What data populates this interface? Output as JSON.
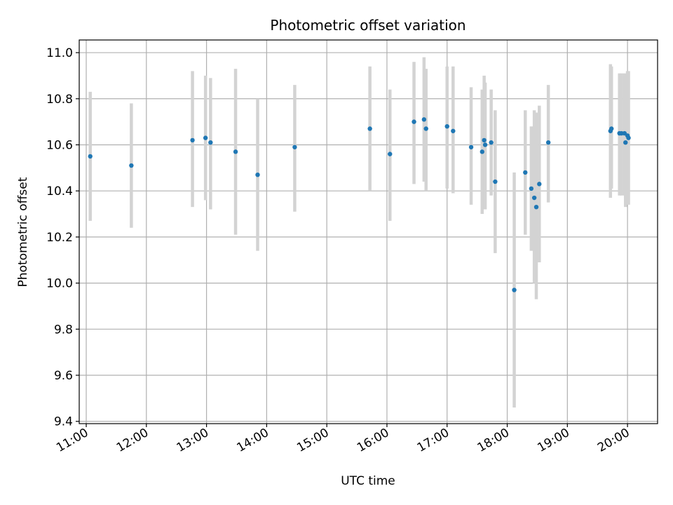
{
  "chart_data": {
    "type": "scatter",
    "title": "Photometric offset variation",
    "xlabel": "UTC time",
    "ylabel": "Photometric offset",
    "grid": true,
    "xlim": [
      "10:53",
      "20:30"
    ],
    "ylim": [
      9.39,
      11.055
    ],
    "xticks": [
      "11:00",
      "12:00",
      "13:00",
      "14:00",
      "15:00",
      "16:00",
      "17:00",
      "18:00",
      "19:00",
      "20:00"
    ],
    "yticks": [
      "9.4",
      "9.6",
      "9.8",
      "10.0",
      "10.2",
      "10.4",
      "10.6",
      "10.8",
      "11.0"
    ],
    "colors": {
      "point": "#1f77b4",
      "errorbar": "#d3d3d3",
      "grid": "#b0b0b0"
    },
    "points": [
      {
        "t": "11:04",
        "y": 10.55,
        "ylo": 10.27,
        "yhi": 10.83
      },
      {
        "t": "11:45",
        "y": 10.51,
        "ylo": 10.24,
        "yhi": 10.78
      },
      {
        "t": "12:46",
        "y": 10.62,
        "ylo": 10.33,
        "yhi": 10.92
      },
      {
        "t": "12:59",
        "y": 10.63,
        "ylo": 10.36,
        "yhi": 10.9
      },
      {
        "t": "13:04",
        "y": 10.61,
        "ylo": 10.32,
        "yhi": 10.89
      },
      {
        "t": "13:29",
        "y": 10.57,
        "ylo": 10.21,
        "yhi": 10.93
      },
      {
        "t": "13:51",
        "y": 10.47,
        "ylo": 10.14,
        "yhi": 10.8
      },
      {
        "t": "14:28",
        "y": 10.59,
        "ylo": 10.31,
        "yhi": 10.86
      },
      {
        "t": "15:43",
        "y": 10.67,
        "ylo": 10.4,
        "yhi": 10.94
      },
      {
        "t": "16:03",
        "y": 10.56,
        "ylo": 10.27,
        "yhi": 10.84
      },
      {
        "t": "16:27",
        "y": 10.7,
        "ylo": 10.43,
        "yhi": 10.96
      },
      {
        "t": "16:37",
        "y": 10.71,
        "ylo": 10.44,
        "yhi": 10.98
      },
      {
        "t": "16:39",
        "y": 10.67,
        "ylo": 10.4,
        "yhi": 10.93
      },
      {
        "t": "17:00",
        "y": 10.68,
        "ylo": 10.41,
        "yhi": 10.94
      },
      {
        "t": "17:06",
        "y": 10.66,
        "ylo": 10.39,
        "yhi": 10.94
      },
      {
        "t": "17:24",
        "y": 10.59,
        "ylo": 10.34,
        "yhi": 10.85
      },
      {
        "t": "17:35",
        "y": 10.57,
        "ylo": 10.3,
        "yhi": 10.84
      },
      {
        "t": "17:37",
        "y": 10.62,
        "ylo": 10.33,
        "yhi": 10.9
      },
      {
        "t": "17:38",
        "y": 10.6,
        "ylo": 10.32,
        "yhi": 10.87
      },
      {
        "t": "17:44",
        "y": 10.61,
        "ylo": 10.38,
        "yhi": 10.84
      },
      {
        "t": "17:48",
        "y": 10.44,
        "ylo": 10.13,
        "yhi": 10.75
      },
      {
        "t": "18:07",
        "y": 9.97,
        "ylo": 9.46,
        "yhi": 10.48
      },
      {
        "t": "18:18",
        "y": 10.48,
        "ylo": 10.21,
        "yhi": 10.75
      },
      {
        "t": "18:24",
        "y": 10.41,
        "ylo": 10.14,
        "yhi": 10.68
      },
      {
        "t": "18:27",
        "y": 10.37,
        "ylo": 10.0,
        "yhi": 10.75
      },
      {
        "t": "18:29",
        "y": 10.33,
        "ylo": 9.93,
        "yhi": 10.74
      },
      {
        "t": "18:32",
        "y": 10.43,
        "ylo": 10.09,
        "yhi": 10.77
      },
      {
        "t": "18:41",
        "y": 10.61,
        "ylo": 10.35,
        "yhi": 10.86
      },
      {
        "t": "19:43",
        "y": 10.66,
        "ylo": 10.37,
        "yhi": 10.95
      },
      {
        "t": "19:44",
        "y": 10.67,
        "ylo": 10.41,
        "yhi": 10.94
      },
      {
        "t": "19:52",
        "y": 10.65,
        "ylo": 10.38,
        "yhi": 10.91
      },
      {
        "t": "19:54",
        "y": 10.65,
        "ylo": 10.38,
        "yhi": 10.91
      },
      {
        "t": "19:57",
        "y": 10.65,
        "ylo": 10.38,
        "yhi": 10.91
      },
      {
        "t": "19:58",
        "y": 10.61,
        "ylo": 10.33,
        "yhi": 10.88
      },
      {
        "t": "20:00",
        "y": 10.64,
        "ylo": 10.36,
        "yhi": 10.92
      },
      {
        "t": "20:01",
        "y": 10.63,
        "ylo": 10.34,
        "yhi": 10.92
      }
    ]
  }
}
